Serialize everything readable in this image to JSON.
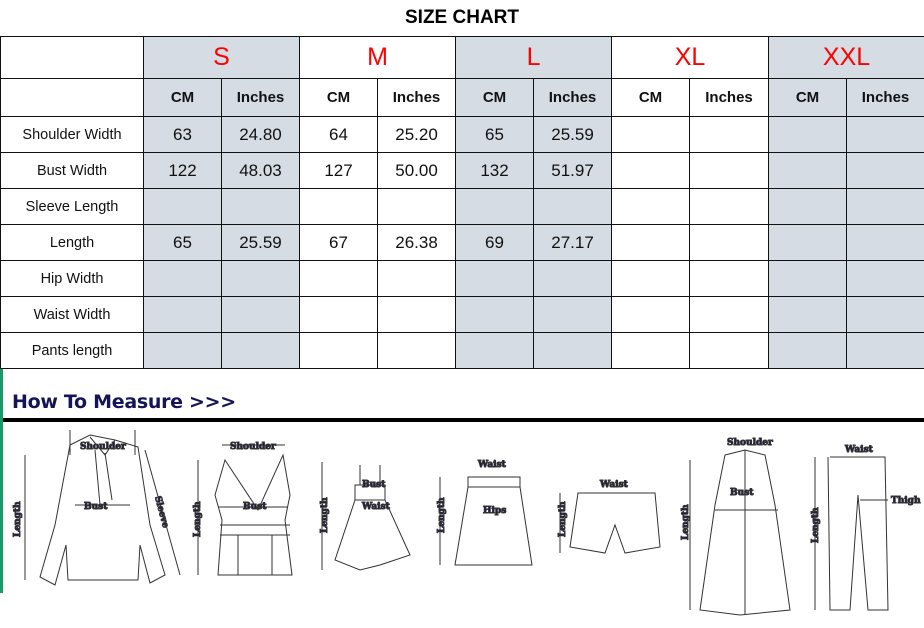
{
  "title": "SIZE CHART",
  "sizes": [
    "S",
    "M",
    "L",
    "XL",
    "XXL"
  ],
  "units": {
    "cm": "CM",
    "inches": "Inches"
  },
  "rows": [
    {
      "label": "Shoulder Width",
      "values": [
        "63",
        "24.80",
        "64",
        "25.20",
        "65",
        "25.59",
        "",
        "",
        "",
        ""
      ]
    },
    {
      "label": "Bust Width",
      "values": [
        "122",
        "48.03",
        "127",
        "50.00",
        "132",
        "51.97",
        "",
        "",
        "",
        ""
      ]
    },
    {
      "label": "Sleeve Length",
      "values": [
        "",
        "",
        "",
        "",
        "",
        "",
        "",
        "",
        "",
        ""
      ]
    },
    {
      "label": "Length",
      "values": [
        "65",
        "25.59",
        "67",
        "26.38",
        "69",
        "27.17",
        "",
        "",
        "",
        ""
      ]
    },
    {
      "label": "Hip Width",
      "values": [
        "",
        "",
        "",
        "",
        "",
        "",
        "",
        "",
        "",
        ""
      ]
    },
    {
      "label": "Waist Width",
      "values": [
        "",
        "",
        "",
        "",
        "",
        "",
        "",
        "",
        "",
        ""
      ]
    },
    {
      "label": "Pants length",
      "values": [
        "",
        "",
        "",
        "",
        "",
        "",
        "",
        "",
        "",
        ""
      ]
    }
  ],
  "colors": {
    "size_label": "#ff0000",
    "shaded_column": "#d6dce4",
    "measure_text": "#141456",
    "side_bar": "#1a9a6a"
  },
  "how_to_measure": {
    "heading": "How To Measure >>>",
    "labels": {
      "shoulder": "Shoulder",
      "bust": "Bust",
      "sleeve": "Sleeve",
      "length": "Length",
      "waist": "Waist",
      "hips": "Hips",
      "thigh": "Thigh"
    }
  }
}
